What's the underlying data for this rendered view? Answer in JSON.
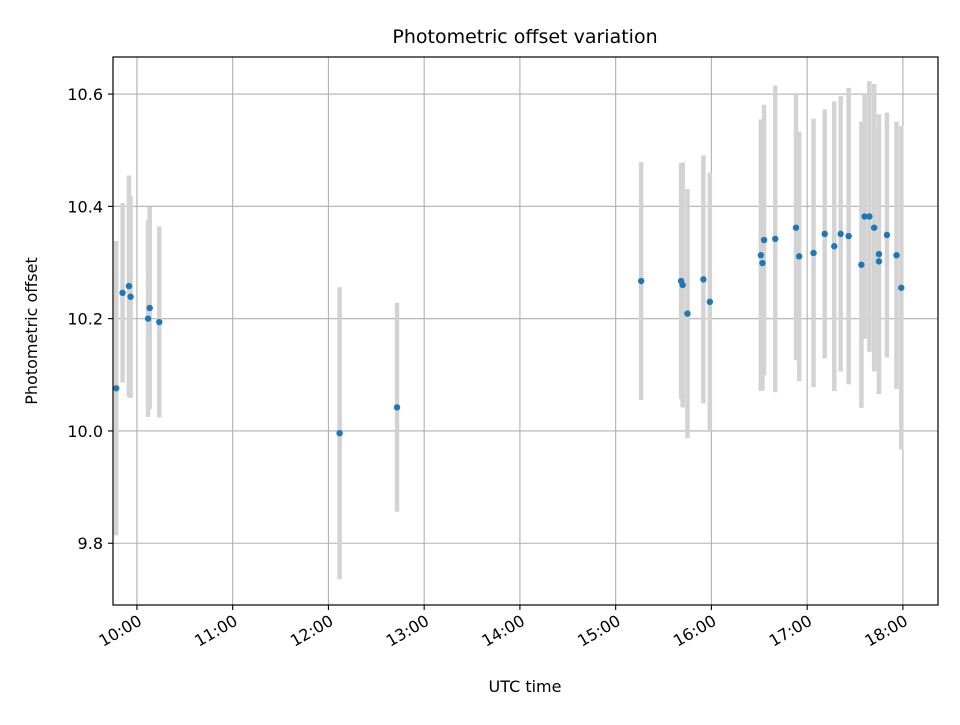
{
  "chart_data": {
    "type": "scatter",
    "title": "Photometric offset variation",
    "xlabel": "UTC time",
    "ylabel": "Photometric offset",
    "x_axis_type": "time",
    "x_range": [
      "09:45",
      "18:22"
    ],
    "x_ticks": [
      "10:00",
      "11:00",
      "12:00",
      "13:00",
      "14:00",
      "15:00",
      "16:00",
      "17:00",
      "18:00"
    ],
    "y_range": [
      9.69,
      10.666
    ],
    "y_ticks": [
      "9.8",
      "10.0",
      "10.2",
      "10.4",
      "10.6"
    ],
    "grid": true,
    "marker_color": "#1f77b4",
    "errorbar_color": "#d3d3d3",
    "points": [
      {
        "t": "09:47",
        "y": 10.076,
        "err": 0.262
      },
      {
        "t": "09:51",
        "y": 10.246,
        "err": 0.16
      },
      {
        "t": "09:55",
        "y": 10.258,
        "err": 0.197
      },
      {
        "t": "09:56",
        "y": 10.239,
        "err": 0.18
      },
      {
        "t": "10:07",
        "y": 10.2,
        "err": 0.175
      },
      {
        "t": "10:08",
        "y": 10.219,
        "err": 0.18
      },
      {
        "t": "10:14",
        "y": 10.194,
        "err": 0.17
      },
      {
        "t": "12:07",
        "y": 9.996,
        "err": 0.26
      },
      {
        "t": "12:43",
        "y": 10.042,
        "err": 0.186
      },
      {
        "t": "15:16",
        "y": 10.267,
        "err": 0.212
      },
      {
        "t": "15:41",
        "y": 10.267,
        "err": 0.21
      },
      {
        "t": "15:42",
        "y": 10.26,
        "err": 0.218
      },
      {
        "t": "15:45",
        "y": 10.209,
        "err": 0.222
      },
      {
        "t": "15:55",
        "y": 10.27,
        "err": 0.221
      },
      {
        "t": "15:59",
        "y": 10.23,
        "err": 0.23
      },
      {
        "t": "16:31",
        "y": 10.313,
        "err": 0.242
      },
      {
        "t": "16:32",
        "y": 10.299,
        "err": 0.227
      },
      {
        "t": "16:33",
        "y": 10.34,
        "err": 0.241
      },
      {
        "t": "16:40",
        "y": 10.342,
        "err": 0.273
      },
      {
        "t": "16:53",
        "y": 10.362,
        "err": 0.236
      },
      {
        "t": "16:55",
        "y": 10.311,
        "err": 0.222
      },
      {
        "t": "17:04",
        "y": 10.317,
        "err": 0.239
      },
      {
        "t": "17:11",
        "y": 10.351,
        "err": 0.222
      },
      {
        "t": "17:17",
        "y": 10.329,
        "err": 0.258
      },
      {
        "t": "17:21",
        "y": 10.351,
        "err": 0.245
      },
      {
        "t": "17:26",
        "y": 10.347,
        "err": 0.264
      },
      {
        "t": "17:34",
        "y": 10.296,
        "err": 0.255
      },
      {
        "t": "17:36",
        "y": 10.382,
        "err": 0.218
      },
      {
        "t": "17:39",
        "y": 10.382,
        "err": 0.241
      },
      {
        "t": "17:42",
        "y": 10.362,
        "err": 0.256
      },
      {
        "t": "17:45",
        "y": 10.302,
        "err": 0.236
      },
      {
        "t": "17:45",
        "y": 10.315,
        "err": 0.249
      },
      {
        "t": "17:50",
        "y": 10.349,
        "err": 0.218
      },
      {
        "t": "17:56",
        "y": 10.313,
        "err": 0.238
      },
      {
        "t": "17:59",
        "y": 10.255,
        "err": 0.288
      }
    ]
  }
}
